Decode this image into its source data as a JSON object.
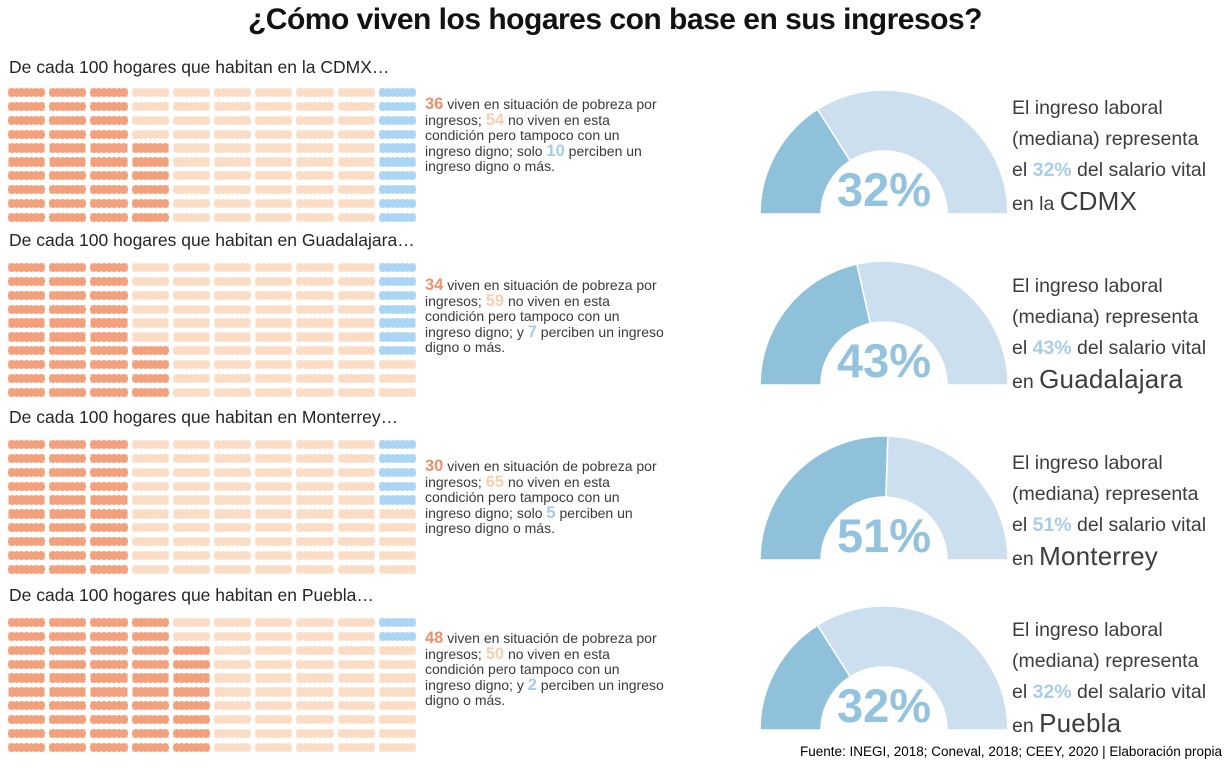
{
  "title": "¿Cómo viven los hogares con base en sus ingresos?",
  "footer": "Fuente: INEGI, 2018; Coneval, 2018; CEEY, 2020 | Elaboración propia",
  "colors": {
    "cell_poverty": "#F3A07D",
    "cell_middle": "#FBDDC6",
    "cell_decent": "#ABD5F5",
    "num_poverty": "#F0916A",
    "num_middle": "#F8CFAF",
    "num_decent": "#A3CBEA",
    "gauge_fill": "#8FC1DB",
    "gauge_rest": "#CBDFEF",
    "gauge_label": "#93C3DF",
    "pct_highlight": "#A8CEE7"
  },
  "sections": [
    {
      "heading": "De cada 100 hogares que habitan en la CDMX…",
      "desc_lines": [
        [
          {
            "text": "36",
            "style": "poverty"
          },
          {
            "text": " viven en situación de pobreza por"
          }
        ],
        [
          {
            "text": "ingresos; "
          },
          {
            "text": "54",
            "style": "middle"
          },
          {
            "text": " no viven en esta"
          }
        ],
        [
          {
            "text": "condición pero tampoco con un"
          }
        ],
        [
          {
            "text": "ingreso digno; solo "
          },
          {
            "text": "10",
            "style": "decent"
          },
          {
            "text": " perciben un"
          }
        ],
        [
          {
            "text": "ingreso digno o más."
          }
        ]
      ],
      "gauge_label": "32%",
      "right_lines": [
        [
          {
            "text": "El ingreso laboral"
          }
        ],
        [
          {
            "text": "(mediana) representa"
          }
        ],
        [
          {
            "text": "el "
          },
          {
            "text": "32%",
            "style": "pct"
          },
          {
            "text": " del salario vital"
          }
        ],
        [
          {
            "text": "en la "
          },
          {
            "text": "CDMX",
            "style": "city"
          }
        ]
      ]
    },
    {
      "heading": "De cada 100 hogares que habitan en Guadalajara…",
      "desc_lines": [
        [
          {
            "text": "34",
            "style": "poverty"
          },
          {
            "text": " viven en situación de pobreza por"
          }
        ],
        [
          {
            "text": "ingresos; "
          },
          {
            "text": "59",
            "style": "middle"
          },
          {
            "text": " no viven en esta"
          }
        ],
        [
          {
            "text": "condición pero tampoco con un"
          }
        ],
        [
          {
            "text": "ingreso digno; y "
          },
          {
            "text": "7",
            "style": "decent"
          },
          {
            "text": " perciben un ingreso"
          }
        ],
        [
          {
            "text": "digno o más."
          }
        ]
      ],
      "gauge_label": "43%",
      "right_lines": [
        [
          {
            "text": "El ingreso laboral"
          }
        ],
        [
          {
            "text": "(mediana) representa"
          }
        ],
        [
          {
            "text": "el "
          },
          {
            "text": "43%",
            "style": "pct"
          },
          {
            "text": " del salario vital"
          }
        ],
        [
          {
            "text": "en "
          },
          {
            "text": "Guadalajara",
            "style": "city"
          }
        ]
      ]
    },
    {
      "heading": "De cada 100 hogares que habitan en Monterrey…",
      "desc_lines": [
        [
          {
            "text": "30",
            "style": "poverty"
          },
          {
            "text": " viven en situación de pobreza por"
          }
        ],
        [
          {
            "text": "ingresos; "
          },
          {
            "text": "65",
            "style": "middle"
          },
          {
            "text": " no viven en esta"
          }
        ],
        [
          {
            "text": "condición pero tampoco con un"
          }
        ],
        [
          {
            "text": "ingreso digno; solo "
          },
          {
            "text": "5",
            "style": "decent"
          },
          {
            "text": " perciben un"
          }
        ],
        [
          {
            "text": "ingreso digno o más."
          }
        ]
      ],
      "gauge_label": "51%",
      "right_lines": [
        [
          {
            "text": "El ingreso laboral"
          }
        ],
        [
          {
            "text": "(mediana) representa"
          }
        ],
        [
          {
            "text": "el "
          },
          {
            "text": "51%",
            "style": "pct"
          },
          {
            "text": " del salario vital"
          }
        ],
        [
          {
            "text": "en "
          },
          {
            "text": "Monterrey",
            "style": "city"
          }
        ]
      ]
    },
    {
      "heading": "De cada 100 hogares que habitan en Puebla…",
      "desc_lines": [
        [
          {
            "text": "48",
            "style": "poverty"
          },
          {
            "text": " viven en situación de pobreza por"
          }
        ],
        [
          {
            "text": "ingresos; "
          },
          {
            "text": "50",
            "style": "middle"
          },
          {
            "text": " no viven en esta"
          }
        ],
        [
          {
            "text": "condición pero tampoco con un"
          }
        ],
        [
          {
            "text": "ingreso digno; y "
          },
          {
            "text": "2",
            "style": "decent"
          },
          {
            "text": " perciben un ingreso"
          }
        ],
        [
          {
            "text": "digno o más."
          }
        ]
      ],
      "gauge_label": "32%",
      "right_lines": [
        [
          {
            "text": "El ingreso laboral"
          }
        ],
        [
          {
            "text": "(mediana) representa"
          }
        ],
        [
          {
            "text": "el "
          },
          {
            "text": "32%",
            "style": "pct"
          },
          {
            "text": " del salario vital"
          }
        ],
        [
          {
            "text": "en "
          },
          {
            "text": "Puebla",
            "style": "city"
          }
        ]
      ]
    }
  ],
  "chart_data": [
    {
      "city": "CDMX",
      "waffle": {
        "type": "waffle",
        "total_units": 100,
        "unit": "hogares",
        "categories": [
          "Viven en situación de pobreza por ingresos",
          "No viven en pobreza pero tampoco con un ingreso digno",
          "Perciben un ingreso digno o más"
        ],
        "values": [
          36,
          54,
          10
        ]
      },
      "gauge": {
        "type": "gauge",
        "percent": 32,
        "min": 0,
        "max": 100,
        "caption": "El ingreso laboral (mediana) representa el 32% del salario vital en la CDMX"
      }
    },
    {
      "city": "Guadalajara",
      "waffle": {
        "type": "waffle",
        "total_units": 100,
        "unit": "hogares",
        "categories": [
          "Viven en situación de pobreza por ingresos",
          "No viven en pobreza pero tampoco con un ingreso digno",
          "Perciben un ingreso digno o más"
        ],
        "values": [
          34,
          59,
          7
        ]
      },
      "gauge": {
        "type": "gauge",
        "percent": 43,
        "min": 0,
        "max": 100,
        "caption": "El ingreso laboral (mediana) representa el 43% del salario vital en Guadalajara"
      }
    },
    {
      "city": "Monterrey",
      "waffle": {
        "type": "waffle",
        "total_units": 100,
        "unit": "hogares",
        "categories": [
          "Viven en situación de pobreza por ingresos",
          "No viven en pobreza pero tampoco con un ingreso digno",
          "Perciben un ingreso digno o más"
        ],
        "values": [
          30,
          65,
          5
        ]
      },
      "gauge": {
        "type": "gauge",
        "percent": 51,
        "min": 0,
        "max": 100,
        "caption": "El ingreso laboral (mediana) representa el 51% del salario vital en Monterrey"
      }
    },
    {
      "city": "Puebla",
      "waffle": {
        "type": "waffle",
        "total_units": 100,
        "unit": "hogares",
        "categories": [
          "Viven en situación de pobreza por ingresos",
          "No viven en pobreza pero tampoco con un ingreso digno",
          "Perciben un ingreso digno o más"
        ],
        "values": [
          48,
          50,
          2
        ]
      },
      "gauge": {
        "type": "gauge",
        "percent": 32,
        "min": 0,
        "max": 100,
        "caption": "El ingreso laboral (mediana) representa el 32% del salario vital en Puebla"
      }
    }
  ]
}
